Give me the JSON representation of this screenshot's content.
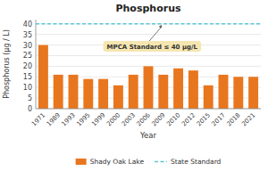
{
  "chart_data": {
    "type": "bar",
    "title": "Phosphorus",
    "xlabel": "Year",
    "ylabel": "Phosphorus (μg / L)",
    "categories": [
      "1971",
      "1989",
      "1993",
      "1995",
      "1999",
      "2000",
      "2003",
      "2006",
      "2009",
      "2010",
      "2012",
      "2015",
      "2017",
      "2018",
      "2021"
    ],
    "series": [
      {
        "name": "Shady Oak Lake",
        "color": "#E8761E",
        "values": [
          30,
          16,
          16,
          14,
          14,
          11,
          16,
          20,
          16,
          19,
          18,
          11,
          16,
          15,
          15
        ]
      }
    ],
    "reference_line": {
      "name": "State Standard",
      "value": 40,
      "color": "#5BC8D8",
      "line_style": "dashed"
    },
    "annotations": [
      {
        "text": "MPCA Standard ≤ 40 μg/L",
        "color": "#F5E6B0"
      }
    ],
    "ylim": [
      0,
      42
    ],
    "yticks": [
      0,
      5,
      10,
      15,
      20,
      25,
      30,
      35,
      40
    ],
    "grid": true,
    "legend": "bottom"
  }
}
